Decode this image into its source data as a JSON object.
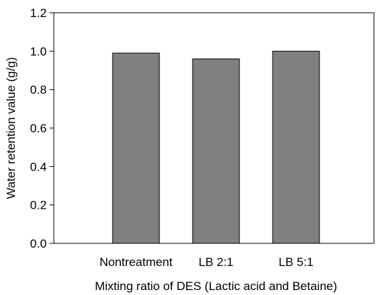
{
  "chart_data": {
    "type": "bar",
    "title": "",
    "xlabel": "Mixting ratio of DES (Lactic acid and Betaine)",
    "ylabel": "Water retention value (g/g)",
    "categories": [
      "Nontreatment",
      "LB 2:1",
      "LB 5:1"
    ],
    "values": [
      0.99,
      0.96,
      1.0
    ],
    "ylim": [
      0,
      1.2
    ],
    "yticks": [
      0.0,
      0.2,
      0.4,
      0.6,
      0.8,
      1.0,
      1.2
    ],
    "yticks_labels": [
      "0.0",
      "0.2",
      "0.4",
      "0.6",
      "0.8",
      "1.0",
      "1.2"
    ],
    "grid": false,
    "legend": "none",
    "bar_color": "#808080",
    "bar_edge_color": "#000000",
    "axis_color": "#000000"
  }
}
